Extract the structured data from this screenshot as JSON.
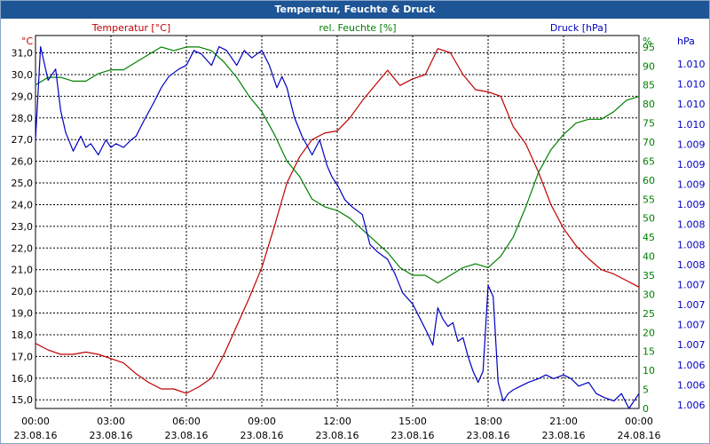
{
  "window": {
    "title": "Temperatur, Feuchte & Druck"
  },
  "colors": {
    "temperature": "#c00000",
    "humidity": "#008000",
    "pressure": "#0000c0",
    "grid": "#000000",
    "title_bar": "#1e5596"
  },
  "chart_data": {
    "type": "line",
    "title": "Temperatur, Feuchte & Druck",
    "grid": true,
    "x_axis": {
      "ticks": [
        {
          "time": "00:00",
          "date": "23.08.16"
        },
        {
          "time": "03:00",
          "date": "23.08.16"
        },
        {
          "time": "06:00",
          "date": "23.08.16"
        },
        {
          "time": "09:00",
          "date": "23.08.16"
        },
        {
          "time": "12:00",
          "date": "23.08.16"
        },
        {
          "time": "15:00",
          "date": "23.08.16"
        },
        {
          "time": "18:00",
          "date": "23.08.16"
        },
        {
          "time": "21:00",
          "date": "23.08.16"
        },
        {
          "time": "00:00",
          "date": "24.08.16"
        }
      ],
      "range_hours": [
        0,
        24
      ]
    },
    "axes": {
      "temperature": {
        "label": "Temperatur [°C]",
        "unit": "°C",
        "ylim": [
          14.6,
          31.8
        ],
        "ticks": [
          "15,0",
          "16,0",
          "17,0",
          "18,0",
          "19,0",
          "20,0",
          "21,0",
          "22,0",
          "23,0",
          "24,0",
          "25,0",
          "26,0",
          "27,0",
          "28,0",
          "29,0",
          "30,0",
          "31,0"
        ]
      },
      "humidity": {
        "label": "rel. Feuchte [%]",
        "unit": "%",
        "ylim": [
          0,
          98
        ],
        "ticks": [
          "0",
          "5",
          "10",
          "15",
          "20",
          "25",
          "30",
          "35",
          "40",
          "45",
          "50",
          "55",
          "60",
          "65",
          "70",
          "75",
          "80",
          "85",
          "90",
          "95"
        ]
      },
      "pressure": {
        "label": "Druck [hPa]",
        "unit": "hPa",
        "ticks": [
          "1.006",
          "1.006",
          "1.006",
          "1.007",
          "1.007",
          "1.007",
          "1.007",
          "1.008",
          "1.008",
          "1.008",
          "1.009",
          "1.009",
          "1.009",
          "1.009",
          "1.010",
          "1.010",
          "1.010",
          "1.010"
        ]
      }
    },
    "series": [
      {
        "name": "Temperatur [°C]",
        "axis": "temperature",
        "x": [
          0,
          0.5,
          1,
          1.5,
          2,
          2.5,
          3,
          3.5,
          4,
          4.5,
          5,
          5.5,
          6,
          6.5,
          7,
          7.5,
          8,
          8.5,
          9,
          9.5,
          10,
          10.5,
          11,
          11.5,
          12,
          12.5,
          13,
          13.5,
          14,
          14.5,
          15,
          15.5,
          16,
          16.5,
          17,
          17.5,
          18,
          18.5,
          19,
          19.5,
          20,
          20.5,
          21,
          21.5,
          22,
          22.5,
          23,
          23.5,
          24
        ],
        "values": [
          17.6,
          17.3,
          17.1,
          17.1,
          17.2,
          17.1,
          16.9,
          16.7,
          16.2,
          15.8,
          15.5,
          15.5,
          15.3,
          15.6,
          16.0,
          17.1,
          18.4,
          19.7,
          21.1,
          23.0,
          25.0,
          26.2,
          27.0,
          27.3,
          27.4,
          28.0,
          28.8,
          29.5,
          30.2,
          29.5,
          29.8,
          30.0,
          31.2,
          31.0,
          30.0,
          29.3,
          29.2,
          29.0,
          27.6,
          26.8,
          25.5,
          24.0,
          22.9,
          22.1,
          21.5,
          21.0,
          20.8,
          20.5,
          20.2
        ]
      },
      {
        "name": "rel. Feuchte [%]",
        "axis": "humidity",
        "x": [
          0,
          0.5,
          1,
          1.5,
          2,
          2.5,
          3,
          3.5,
          4,
          4.5,
          5,
          5.5,
          6,
          6.5,
          7,
          7.5,
          8,
          8.5,
          9,
          9.5,
          10,
          10.5,
          11,
          11.5,
          12,
          12.5,
          13,
          13.5,
          14,
          14.5,
          15,
          15.5,
          16,
          16.5,
          17,
          17.5,
          18,
          18.5,
          19,
          19.5,
          20,
          20.5,
          21,
          21.5,
          22,
          22.5,
          23,
          23.5,
          24
        ],
        "values": [
          85,
          87,
          87,
          86,
          86,
          88,
          89,
          89,
          91,
          93,
          95,
          94,
          95,
          95,
          94,
          91,
          87,
          82,
          78,
          72,
          65,
          61,
          55,
          53,
          52,
          50,
          47,
          44,
          41,
          37,
          35,
          35,
          33,
          35,
          37,
          38,
          37,
          40,
          45,
          53,
          62,
          68,
          72,
          75,
          76,
          76,
          78,
          81,
          82
        ]
      },
      {
        "name": "Druck [hPa]",
        "axis": "pressure",
        "x": [
          0,
          0.2,
          0.5,
          0.8,
          1,
          1.2,
          1.5,
          1.8,
          2,
          2.2,
          2.5,
          2.8,
          3,
          3.2,
          3.5,
          3.8,
          4,
          4.3,
          4.7,
          5,
          5.3,
          5.7,
          6,
          6.3,
          6.6,
          7,
          7.3,
          7.6,
          8,
          8.3,
          8.6,
          9,
          9.3,
          9.6,
          9.8,
          10,
          10.3,
          10.6,
          11,
          11.3,
          11.6,
          11.8,
          12,
          12.3,
          12.6,
          13,
          13.3,
          13.6,
          14,
          14.3,
          14.6,
          15,
          15.3,
          15.6,
          15.8,
          16,
          16.2,
          16.4,
          16.6,
          16.8,
          17,
          17.2,
          17.4,
          17.6,
          17.8,
          18,
          18.2,
          18.4,
          18.6,
          18.8,
          19,
          19.3,
          19.6,
          20,
          20.3,
          20.6,
          21,
          21.3,
          21.6,
          22,
          22.3,
          22.6,
          23,
          23.3,
          23.6,
          24
        ],
        "values": [
          1009.0,
          1010.25,
          1009.8,
          1009.95,
          1009.4,
          1009.1,
          1008.85,
          1009.05,
          1008.9,
          1008.95,
          1008.8,
          1009.0,
          1008.9,
          1008.95,
          1008.9,
          1009.0,
          1009.05,
          1009.25,
          1009.5,
          1009.7,
          1009.85,
          1009.95,
          1010.0,
          1010.2,
          1010.15,
          1010.0,
          1010.25,
          1010.2,
          1010.0,
          1010.2,
          1010.1,
          1010.2,
          1010.0,
          1009.7,
          1009.85,
          1009.7,
          1009.3,
          1009.05,
          1008.8,
          1009.0,
          1008.65,
          1008.5,
          1008.4,
          1008.2,
          1008.1,
          1008.0,
          1007.6,
          1007.5,
          1007.4,
          1007.2,
          1006.95,
          1006.8,
          1006.6,
          1006.4,
          1006.25,
          1006.75,
          1006.6,
          1006.5,
          1006.55,
          1006.3,
          1006.35,
          1006.1,
          1005.9,
          1005.75,
          1005.9,
          1007.05,
          1006.9,
          1005.75,
          1005.5,
          1005.6,
          1005.65,
          1005.7,
          1005.75,
          1005.8,
          1005.85,
          1005.8,
          1005.85,
          1005.8,
          1005.7,
          1005.75,
          1005.6,
          1005.55,
          1005.5,
          1005.6,
          1005.4,
          1005.6
        ]
      }
    ]
  }
}
